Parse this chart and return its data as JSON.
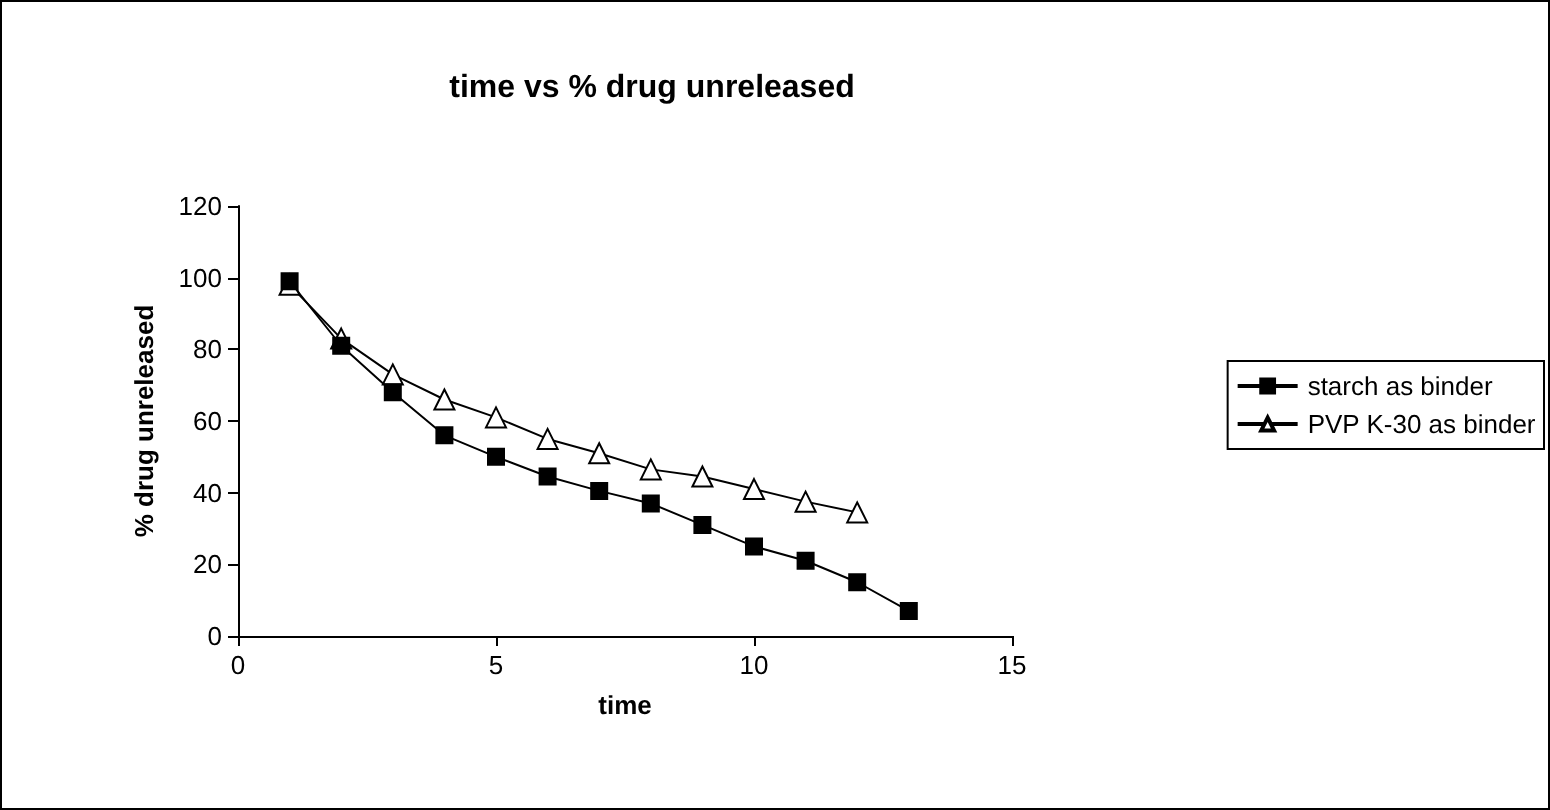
{
  "chart_data": {
    "type": "line",
    "title": "time vs % drug unreleased",
    "xlabel": "time",
    "ylabel": "% drug unreleased",
    "x": [
      1,
      2,
      3,
      4,
      5,
      6,
      7,
      8,
      9,
      10,
      11,
      12,
      13
    ],
    "series": [
      {
        "name": "starch as binder",
        "color": "#000000",
        "marker": "square",
        "values": [
          99,
          81,
          68,
          56,
          50,
          44.5,
          40.5,
          37,
          31,
          25,
          21,
          15,
          7
        ]
      },
      {
        "name": "PVP K-30 as binder",
        "color": "#000000",
        "marker": "triangle",
        "x": [
          1,
          2,
          3,
          4,
          5,
          6,
          7,
          8,
          9,
          10,
          11,
          12
        ],
        "values": [
          98,
          83,
          73,
          66,
          61,
          55,
          51,
          46.5,
          44.5,
          41,
          37.5,
          34.5
        ]
      }
    ],
    "xlim": [
      0,
      15
    ],
    "xticks": [
      0,
      5,
      10,
      15
    ],
    "ylim": [
      0,
      120
    ],
    "yticks": [
      0,
      20,
      40,
      60,
      80,
      100,
      120
    ],
    "grid": false,
    "legend": "right",
    "line_style": "solid"
  }
}
